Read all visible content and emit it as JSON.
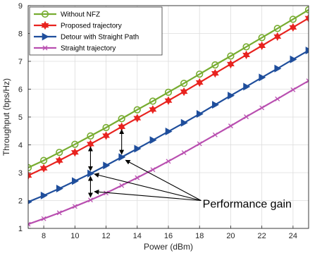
{
  "chart_data": {
    "type": "line",
    "title": "",
    "xlabel": "Power (dBm)",
    "ylabel": "Throughput (bps/Hz)",
    "xlim": [
      7,
      25
    ],
    "ylim": [
      1,
      9
    ],
    "xticks": [
      8,
      10,
      12,
      14,
      16,
      18,
      20,
      22,
      24
    ],
    "yticks": [
      1,
      2,
      3,
      4,
      5,
      6,
      7,
      8,
      9
    ],
    "grid": true,
    "legend_position": "top-left",
    "x": [
      7,
      8,
      9,
      10,
      11,
      12,
      13,
      14,
      15,
      16,
      17,
      18,
      19,
      20,
      21,
      22,
      23,
      24,
      25
    ],
    "series": [
      {
        "name": "Without NFZ",
        "color": "#77AC30",
        "marker": "circle",
        "values": [
          3.18,
          3.44,
          3.73,
          4.02,
          4.32,
          4.62,
          4.94,
          5.26,
          5.57,
          5.89,
          6.21,
          6.54,
          6.87,
          7.19,
          7.52,
          7.85,
          8.18,
          8.51,
          8.85
        ]
      },
      {
        "name": "Proposed trajectory",
        "color": "#E8231F",
        "marker": "hexagram",
        "values": [
          2.9,
          3.16,
          3.44,
          3.73,
          4.03,
          4.33,
          4.65,
          4.96,
          5.27,
          5.59,
          5.91,
          6.24,
          6.57,
          6.9,
          7.23,
          7.56,
          7.89,
          8.22,
          8.55
        ]
      },
      {
        "name": "Detour with Straight Path",
        "color": "#1F4E9C",
        "marker": "triangle-right",
        "values": [
          1.95,
          2.18,
          2.43,
          2.7,
          2.97,
          3.26,
          3.56,
          3.86,
          4.17,
          4.48,
          4.79,
          5.11,
          5.44,
          5.77,
          6.09,
          6.42,
          6.74,
          7.07,
          7.39
        ]
      },
      {
        "name": "Straight trajectory",
        "color": "#B94FB0",
        "marker": "x",
        "values": [
          1.15,
          1.35,
          1.56,
          1.79,
          2.02,
          2.27,
          2.54,
          2.82,
          3.11,
          3.41,
          3.72,
          4.04,
          4.36,
          4.68,
          5.01,
          5.33,
          5.65,
          5.98,
          6.3
        ]
      }
    ],
    "annotations": [
      {
        "text": "Performance gain"
      }
    ]
  }
}
